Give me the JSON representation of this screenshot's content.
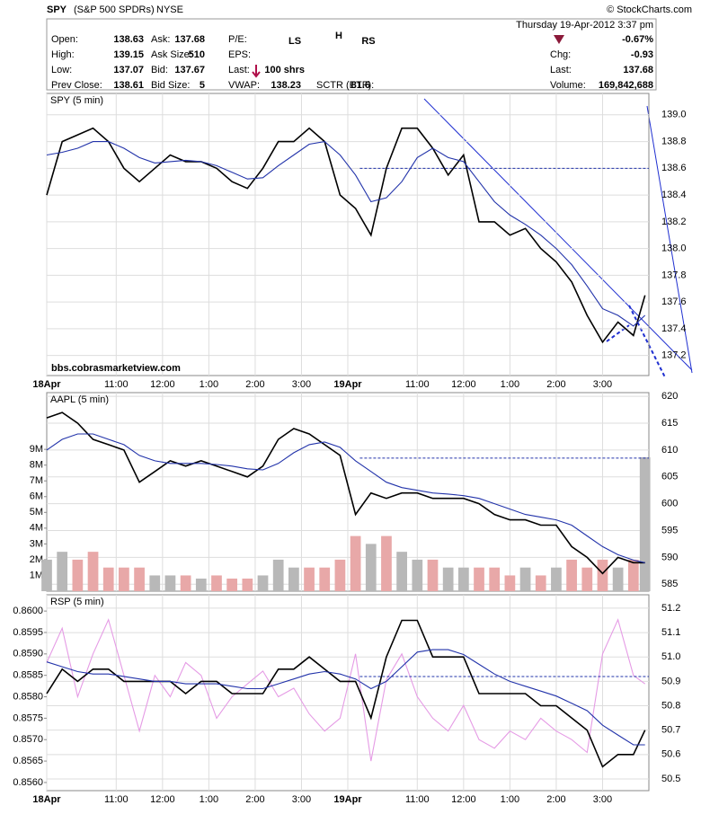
{
  "header": {
    "symbol": "SPY",
    "name": "(S&P 500 SPDRs)",
    "exchange": "NYSE",
    "datetime": "Thursday  19-Apr-2012  3:37 pm",
    "copyright": "© StockCharts.com",
    "change_pct": "-0.67%",
    "fields": [
      {
        "label": "Open:",
        "value": "138.63"
      },
      {
        "label": "High:",
        "value": "139.15"
      },
      {
        "label": "Low:",
        "value": "137.07"
      },
      {
        "label": "Prev Close:",
        "value": "138.61"
      },
      {
        "label": "Ask:",
        "value": "137.68"
      },
      {
        "label": "Ask Size:",
        "value": "510"
      },
      {
        "label": "Bid:",
        "value": "137.67"
      },
      {
        "label": "Bid Size:",
        "value": "5"
      },
      {
        "label": "P/E:"
      },
      {
        "label": "EPS:"
      },
      {
        "label": "Last:",
        "value": "100 shrs"
      },
      {
        "label": "VWAP:",
        "value": "138.23"
      },
      {
        "label": "SCTR (ETF):",
        "value": "81.6"
      },
      {
        "label": "Chg:",
        "value": "-0.93"
      },
      {
        "label": "Last:",
        "value": "137.68"
      },
      {
        "label": "Volume:",
        "value": "169,842,688"
      }
    ]
  },
  "chart_data": [
    {
      "type": "line",
      "title": "SPY (5 min)",
      "annotations": [
        "LS",
        "H",
        "RS"
      ],
      "watermark": "bbs.cobrasmarketview.com",
      "x": [
        0,
        4,
        8,
        12,
        16,
        20,
        24,
        28,
        32,
        36,
        40,
        44,
        48,
        52,
        56,
        60,
        64,
        68,
        72,
        76,
        80,
        84,
        88,
        92,
        96,
        100,
        104,
        108,
        112,
        116,
        120,
        124,
        128,
        132,
        136,
        140,
        144,
        148,
        152,
        155
      ],
      "xlim": [
        0,
        156
      ],
      "xticks": [
        {
          "value": 0,
          "label": "18Apr"
        },
        {
          "value": 18,
          "label": "11:00"
        },
        {
          "value": 30,
          "label": "12:00"
        },
        {
          "value": 42,
          "label": "1:00"
        },
        {
          "value": 54,
          "label": "2:00"
        },
        {
          "value": 66,
          "label": "3:00"
        },
        {
          "value": 78,
          "label": "19Apr"
        },
        {
          "value": 96,
          "label": "11:00"
        },
        {
          "value": 108,
          "label": "12:00"
        },
        {
          "value": 120,
          "label": "1:00"
        },
        {
          "value": 132,
          "label": "2:00"
        },
        {
          "value": 144,
          "label": "3:00"
        }
      ],
      "ylim": [
        137.05,
        139.16
      ],
      "yticks": [
        137.2,
        137.4,
        137.6,
        137.8,
        {
          "value": 138.0,
          "label": "138.0"
        },
        138.2,
        138.4,
        138.6,
        138.8,
        {
          "value": 139.0,
          "label": "139.0"
        }
      ],
      "hline": 138.6,
      "grid": true,
      "series": [
        {
          "color": "#000000",
          "values": [
            138.4,
            138.8,
            138.85,
            138.9,
            138.8,
            138.6,
            138.5,
            138.6,
            138.7,
            138.65,
            138.65,
            138.6,
            138.5,
            138.45,
            138.6,
            138.8,
            138.8,
            138.9,
            138.8,
            138.4,
            138.3,
            138.1,
            138.6,
            138.9,
            138.9,
            138.75,
            138.55,
            138.7,
            138.2,
            138.2,
            138.1,
            138.15,
            138.0,
            137.9,
            137.75,
            137.5,
            137.3,
            137.45,
            137.35,
            137.65
          ]
        },
        {
          "color": "#2233aa",
          "values": [
            138.7,
            138.72,
            138.75,
            138.8,
            138.8,
            138.75,
            138.68,
            138.64,
            138.65,
            138.66,
            138.65,
            138.62,
            138.57,
            138.52,
            138.53,
            138.62,
            138.7,
            138.78,
            138.8,
            138.7,
            138.55,
            138.35,
            138.38,
            138.5,
            138.68,
            138.75,
            138.68,
            138.65,
            138.5,
            138.35,
            138.25,
            138.18,
            138.1,
            138.0,
            137.88,
            137.72,
            137.55,
            137.5,
            137.42,
            137.5
          ]
        }
      ]
    },
    {
      "type": "line",
      "title": "AAPL (5 min)",
      "x": [
        0,
        4,
        8,
        12,
        16,
        20,
        24,
        28,
        32,
        36,
        40,
        44,
        48,
        52,
        56,
        60,
        64,
        68,
        72,
        76,
        80,
        84,
        88,
        92,
        96,
        100,
        104,
        108,
        112,
        116,
        120,
        124,
        128,
        132,
        136,
        140,
        144,
        148,
        152,
        155
      ],
      "xlim": [
        0,
        156
      ],
      "xticks": [
        18,
        30,
        42,
        54,
        66,
        78,
        96,
        108,
        120,
        132,
        144
      ],
      "ylim": [
        583.7,
        620.7
      ],
      "yticks": [
        585,
        590,
        595,
        600,
        605,
        610,
        615,
        620
      ],
      "y2lim": [
        0,
        12600000
      ],
      "y2ticks": [
        {
          "value": 1000000,
          "label": "1M"
        },
        {
          "value": 2000000,
          "label": "2M"
        },
        {
          "value": 3000000,
          "label": "3M"
        },
        {
          "value": 4000000,
          "label": "4M"
        },
        {
          "value": 5000000,
          "label": "5M"
        },
        {
          "value": 6000000,
          "label": "6M"
        },
        {
          "value": 7000000,
          "label": "7M"
        },
        {
          "value": 8000000,
          "label": "8M"
        },
        {
          "value": 9000000,
          "label": "9M"
        }
      ],
      "hline": 608.5,
      "grid": true,
      "up_color": "#b8b8b8",
      "down_color": "#e8a8a8",
      "series": [
        {
          "type": "bar",
          "axis": "y2",
          "values": [
            2000000,
            2500000,
            2000000,
            2500000,
            1500000,
            1500000,
            1500000,
            1000000,
            1000000,
            1000000,
            800000,
            1000000,
            800000,
            800000,
            1000000,
            2000000,
            1500000,
            1500000,
            1500000,
            2000000,
            3500000,
            3000000,
            3500000,
            2500000,
            2000000,
            2000000,
            1500000,
            1500000,
            1500000,
            1500000,
            1000000,
            1500000,
            1000000,
            1500000,
            2000000,
            1500000,
            2000000,
            1500000,
            2000000,
            8500000
          ]
        },
        {
          "color": "#000000",
          "values": [
            616,
            617,
            615,
            612,
            611,
            610,
            604,
            606,
            608,
            607,
            608,
            607,
            606,
            605,
            607,
            612,
            614,
            613,
            611,
            609,
            598,
            602,
            601,
            602,
            602,
            601,
            601,
            601,
            600,
            598,
            597,
            597,
            596,
            596,
            592,
            590,
            587,
            590,
            589,
            589
          ]
        },
        {
          "color": "#2233aa",
          "values": [
            610,
            612,
            613,
            613,
            612,
            611,
            609,
            608,
            607.5,
            607.5,
            607.5,
            607.3,
            607,
            606.5,
            606.3,
            607.5,
            609.5,
            611,
            611.5,
            610.5,
            608,
            606,
            604,
            603,
            602.5,
            602,
            601.8,
            601.5,
            601,
            600,
            599,
            598,
            597.5,
            597,
            596,
            594,
            592,
            590.5,
            589.5,
            589
          ]
        }
      ]
    },
    {
      "type": "line",
      "title": "RSP (5 min)",
      "x": [
        0,
        4,
        8,
        12,
        16,
        20,
        24,
        28,
        32,
        36,
        40,
        44,
        48,
        52,
        56,
        60,
        64,
        68,
        72,
        76,
        80,
        84,
        88,
        92,
        96,
        100,
        104,
        108,
        112,
        116,
        120,
        124,
        128,
        132,
        136,
        140,
        144,
        148,
        152,
        155
      ],
      "xlim": [
        0,
        156
      ],
      "xticks": [
        {
          "value": 0,
          "label": "18Apr"
        },
        {
          "value": 18,
          "label": "11:00"
        },
        {
          "value": 30,
          "label": "12:00"
        },
        {
          "value": 42,
          "label": "1:00"
        },
        {
          "value": 54,
          "label": "2:00"
        },
        {
          "value": 66,
          "label": "3:00"
        },
        {
          "value": 78,
          "label": "19Apr"
        },
        {
          "value": 96,
          "label": "11:00"
        },
        {
          "value": 108,
          "label": "12:00"
        },
        {
          "value": 120,
          "label": "1:00"
        },
        {
          "value": 132,
          "label": "2:00"
        },
        {
          "value": 144,
          "label": "3:00"
        }
      ],
      "ylim": [
        50.452,
        51.255
      ],
      "yticks": [
        50.5,
        50.6,
        50.7,
        50.8,
        50.9,
        {
          "value": 51.0,
          "label": "51.0"
        },
        51.1,
        51.2
      ],
      "y2lim": [
        0.85581,
        0.86038
      ],
      "y2ticks": [
        {
          "value": 0.856,
          "label": "0.8560"
        },
        {
          "value": 0.8565,
          "label": "0.8565"
        },
        {
          "value": 0.857,
          "label": "0.8570"
        },
        {
          "value": 0.8575,
          "label": "0.8575"
        },
        {
          "value": 0.858,
          "label": "0.8580"
        },
        {
          "value": 0.8585,
          "label": "0.8585"
        },
        {
          "value": 0.859,
          "label": "0.8590"
        },
        {
          "value": 0.8595,
          "label": "0.8595"
        },
        {
          "value": 0.86,
          "label": "0.8600"
        }
      ],
      "hline": 50.92,
      "grid": true,
      "series": [
        {
          "axis": "y2",
          "color": "#e59be5",
          "values": [
            0.8588,
            0.8596,
            0.858,
            0.859,
            0.8598,
            0.8585,
            0.8572,
            0.8585,
            0.858,
            0.8588,
            0.8585,
            0.8575,
            0.858,
            0.8583,
            0.8586,
            0.858,
            0.8582,
            0.8576,
            0.8572,
            0.8575,
            0.859,
            0.8565,
            0.8584,
            0.859,
            0.858,
            0.8575,
            0.8572,
            0.8578,
            0.857,
            0.8568,
            0.8572,
            0.857,
            0.8575,
            0.8572,
            0.857,
            0.8567,
            0.859,
            0.8598,
            0.8585,
            0.8583
          ]
        },
        {
          "color": "#000000",
          "values": [
            50.85,
            50.95,
            50.9,
            50.95,
            50.95,
            50.9,
            50.9,
            50.9,
            50.9,
            50.85,
            50.9,
            50.9,
            50.85,
            50.85,
            50.85,
            50.95,
            50.95,
            51.0,
            50.95,
            50.9,
            50.9,
            50.75,
            51.0,
            51.15,
            51.15,
            51.0,
            51.0,
            51.0,
            50.85,
            50.85,
            50.85,
            50.85,
            50.8,
            50.8,
            50.75,
            50.7,
            50.55,
            50.6,
            50.6,
            50.7
          ]
        },
        {
          "color": "#2233aa",
          "values": [
            50.98,
            50.96,
            50.94,
            50.93,
            50.93,
            50.92,
            50.91,
            50.9,
            50.9,
            50.89,
            50.89,
            50.89,
            50.88,
            50.87,
            50.87,
            50.89,
            50.91,
            50.93,
            50.94,
            50.93,
            50.91,
            50.87,
            50.9,
            50.96,
            51.02,
            51.03,
            51.03,
            51.01,
            50.97,
            50.93,
            50.9,
            50.88,
            50.86,
            50.84,
            50.81,
            50.78,
            50.72,
            50.68,
            50.64,
            50.64
          ]
        }
      ]
    }
  ]
}
